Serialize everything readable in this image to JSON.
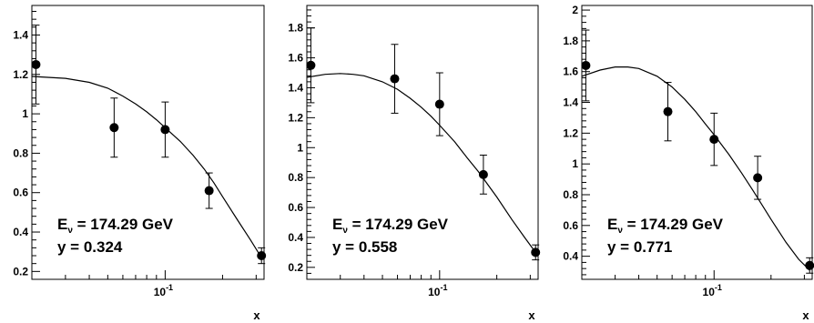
{
  "chart_data": [
    {
      "type": "scatter",
      "xlabel": "x",
      "x_scale": "log",
      "xlim": [
        0.02,
        0.33
      ],
      "ylim": [
        0.16,
        1.55
      ],
      "y_ticks": [
        0.2,
        0.4,
        0.6,
        0.8,
        1,
        1.2,
        1.4
      ],
      "y_tick_labels": [
        "0.2",
        "0.4",
        "0.6",
        "0.8",
        "1",
        "1.2",
        "1.4"
      ],
      "x_tick_label": {
        "base": "10",
        "exp": "-1",
        "value": 0.1
      },
      "annotation": {
        "e_main": "E",
        "e_sub": "ν",
        "e_rest": " = 174.29 GeV",
        "y_line": "y = 0.324"
      },
      "points": [
        {
          "x": 0.021,
          "y": 1.25,
          "err": 0.2
        },
        {
          "x": 0.054,
          "y": 0.93,
          "err": 0.15
        },
        {
          "x": 0.1,
          "y": 0.92,
          "err": 0.14
        },
        {
          "x": 0.17,
          "y": 0.61,
          "err": 0.09
        },
        {
          "x": 0.32,
          "y": 0.28,
          "err": 0.04
        }
      ],
      "curve": {
        "x": [
          0.02,
          0.03,
          0.04,
          0.05,
          0.06,
          0.07,
          0.08,
          0.09,
          0.1,
          0.12,
          0.14,
          0.16,
          0.18,
          0.2,
          0.24,
          0.28,
          0.32
        ],
        "y": [
          1.19,
          1.18,
          1.16,
          1.13,
          1.09,
          1.05,
          1.01,
          0.97,
          0.93,
          0.86,
          0.79,
          0.72,
          0.65,
          0.58,
          0.46,
          0.36,
          0.27
        ]
      }
    },
    {
      "type": "scatter",
      "xlabel": "x",
      "x_scale": "log",
      "xlim": [
        0.02,
        0.33
      ],
      "ylim": [
        0.12,
        1.95
      ],
      "y_ticks": [
        0.2,
        0.4,
        0.6,
        0.8,
        1,
        1.2,
        1.4,
        1.6,
        1.8
      ],
      "y_tick_labels": [
        "0.2",
        "0.4",
        "0.6",
        "0.8",
        "1",
        "1.2",
        "1.4",
        "1.6",
        "1.8"
      ],
      "x_tick_label": {
        "base": "10",
        "exp": "-1",
        "value": 0.1
      },
      "annotation": {
        "e_main": "E",
        "e_sub": "ν",
        "e_rest": " = 174.29 GeV",
        "y_line": "y = 0.558"
      },
      "points": [
        {
          "x": 0.021,
          "y": 1.55,
          "err": 0.25
        },
        {
          "x": 0.058,
          "y": 1.46,
          "err": 0.23
        },
        {
          "x": 0.1,
          "y": 1.29,
          "err": 0.21
        },
        {
          "x": 0.17,
          "y": 0.82,
          "err": 0.13
        },
        {
          "x": 0.32,
          "y": 0.3,
          "err": 0.05
        }
      ],
      "curve": {
        "x": [
          0.02,
          0.025,
          0.03,
          0.035,
          0.04,
          0.05,
          0.06,
          0.07,
          0.08,
          0.09,
          0.1,
          0.12,
          0.14,
          0.16,
          0.18,
          0.2,
          0.24,
          0.28,
          0.32
        ],
        "y": [
          1.47,
          1.49,
          1.495,
          1.49,
          1.48,
          1.44,
          1.39,
          1.33,
          1.27,
          1.21,
          1.15,
          1.04,
          0.93,
          0.84,
          0.75,
          0.67,
          0.52,
          0.4,
          0.3
        ]
      }
    },
    {
      "type": "scatter",
      "xlabel": "x",
      "x_scale": "log",
      "xlim": [
        0.02,
        0.33
      ],
      "ylim": [
        0.25,
        2.03
      ],
      "y_ticks": [
        0.4,
        0.6,
        0.8,
        1,
        1.2,
        1.4,
        1.6,
        1.8,
        2
      ],
      "y_tick_labels": [
        "0.4",
        "0.6",
        "0.8",
        "1",
        "1.2",
        "1.4",
        "1.6",
        "1.8",
        "2"
      ],
      "x_tick_label": {
        "base": "10",
        "exp": "-1",
        "value": 0.1
      },
      "annotation": {
        "e_main": "E",
        "e_sub": "ν",
        "e_rest": " = 174.29 GeV",
        "y_line": "y = 0.771"
      },
      "points": [
        {
          "x": 0.021,
          "y": 1.64,
          "err": 0.23
        },
        {
          "x": 0.057,
          "y": 1.34,
          "err": 0.19
        },
        {
          "x": 0.1,
          "y": 1.16,
          "err": 0.17
        },
        {
          "x": 0.17,
          "y": 0.91,
          "err": 0.14
        },
        {
          "x": 0.32,
          "y": 0.34,
          "err": 0.05
        }
      ],
      "curve": {
        "x": [
          0.02,
          0.025,
          0.03,
          0.035,
          0.04,
          0.05,
          0.06,
          0.07,
          0.08,
          0.09,
          0.1,
          0.12,
          0.14,
          0.16,
          0.18,
          0.2,
          0.24,
          0.28,
          0.32
        ],
        "y": [
          1.57,
          1.61,
          1.63,
          1.63,
          1.62,
          1.57,
          1.5,
          1.42,
          1.34,
          1.26,
          1.19,
          1.06,
          0.94,
          0.83,
          0.73,
          0.64,
          0.49,
          0.38,
          0.31
        ]
      }
    }
  ]
}
